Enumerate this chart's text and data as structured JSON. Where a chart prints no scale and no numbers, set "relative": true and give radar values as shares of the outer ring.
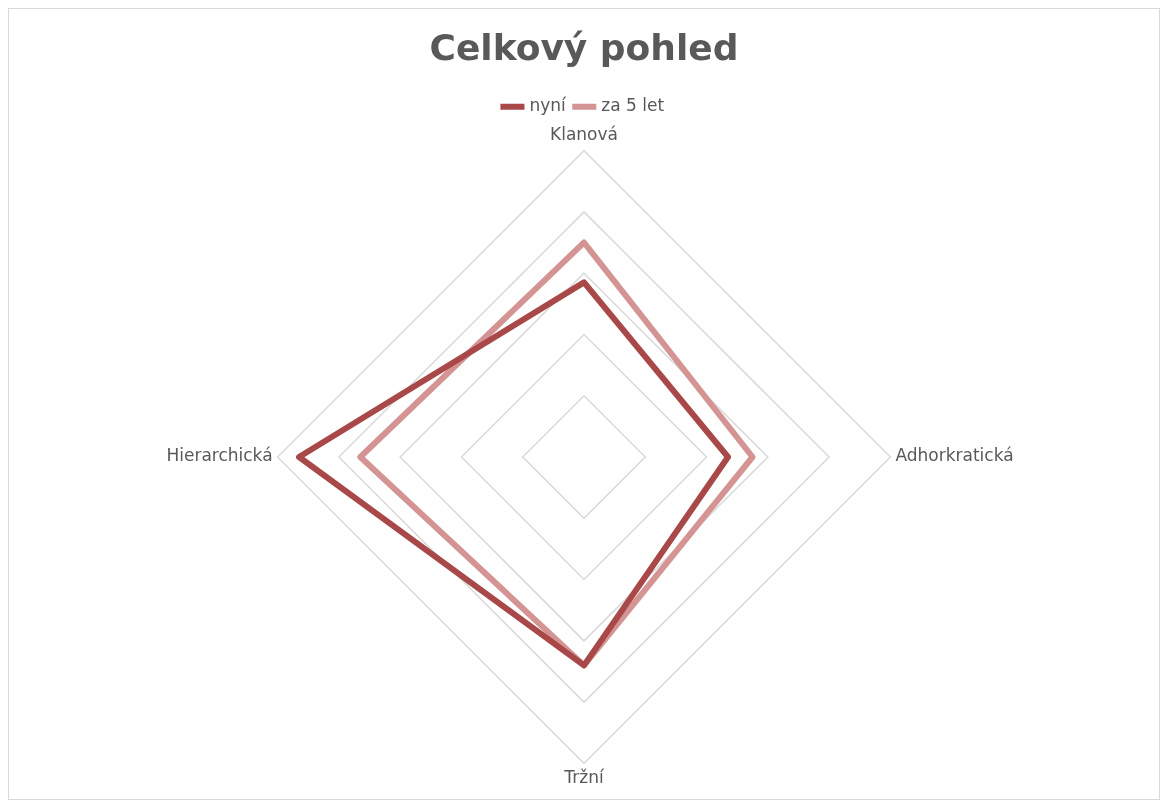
{
  "chart_data": {
    "type": "radar",
    "title": "Celkový pohled",
    "relative": true,
    "legend": "top",
    "marker": "none",
    "line_style": "solid",
    "categories": [
      "Klanová",
      "Adhorkratická",
      "Tržní",
      "Hierarchická"
    ],
    "series": [
      {
        "name": "nyní",
        "color": "#a84848",
        "values": [
          0.57,
          0.47,
          0.68,
          0.93
        ]
      },
      {
        "name": "za 5 let",
        "color": "#d49494",
        "values": [
          0.7,
          0.55,
          0.68,
          0.73
        ]
      }
    ]
  }
}
